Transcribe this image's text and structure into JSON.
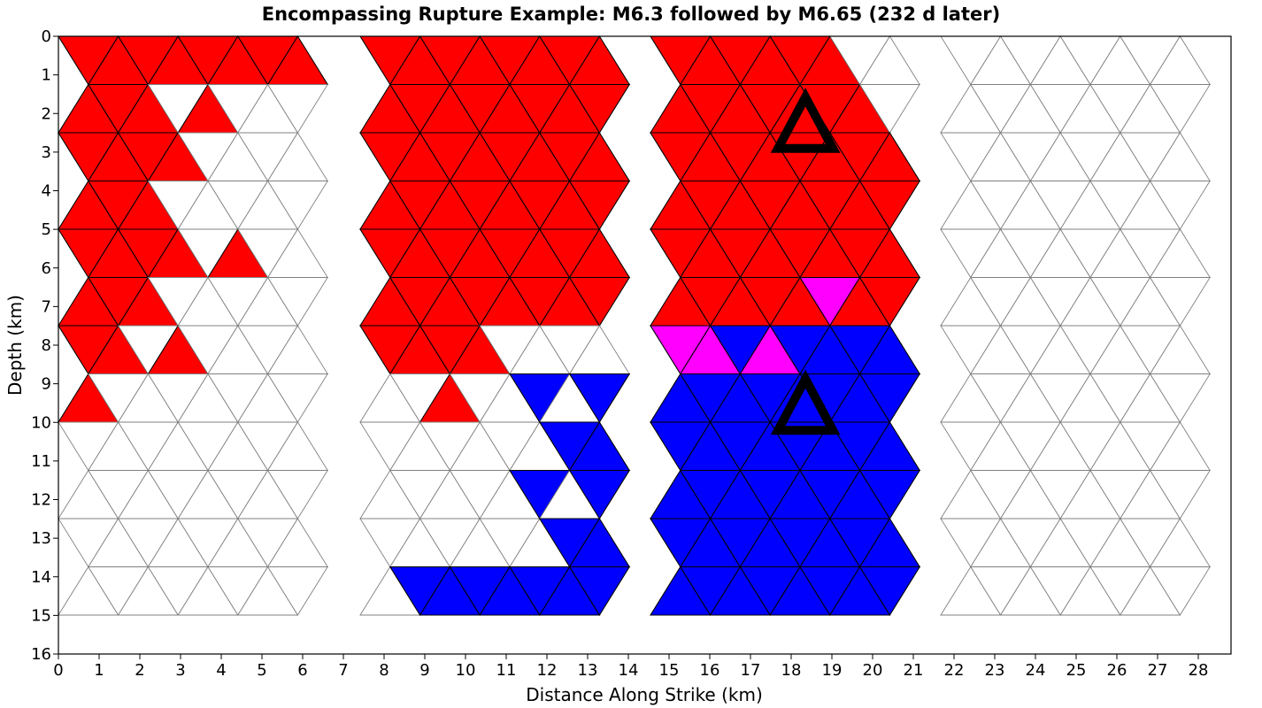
{
  "chart_data": {
    "type": "triangular fault mesh (rupture map)",
    "title": "Encompassing Rupture Example: M6.3 followed by M6.65 (232 d later)",
    "xlabel": "Distance Along Strike (km)",
    "ylabel": "Depth (km)",
    "xlim": [
      0,
      28.8
    ],
    "ylim": [
      16,
      0
    ],
    "x_ticks": [
      "0",
      "1",
      "2",
      "3",
      "4",
      "5",
      "6",
      "7",
      "8",
      "9",
      "10",
      "11",
      "12",
      "13",
      "14",
      "15",
      "16",
      "17",
      "18",
      "19",
      "20",
      "21",
      "22",
      "23",
      "24",
      "25",
      "26",
      "27",
      "28"
    ],
    "y_ticks": [
      "0",
      "1",
      "2",
      "3",
      "4",
      "5",
      "6",
      "7",
      "8",
      "9",
      "10",
      "11",
      "12",
      "13",
      "14",
      "15",
      "16"
    ],
    "colors": {
      "first_rupture": "#ff0000",
      "second_rupture": "#0000ff",
      "overlap": "#ff00ff",
      "unruptured": "#ffffff",
      "ruptured_edge": "#000000",
      "mesh_edge": "#808080"
    },
    "hypocenter_markers": [
      {
        "x_km": 18.35,
        "depth_km": 2.4
      },
      {
        "x_km": 18.35,
        "depth_km": 9.7
      }
    ],
    "segments": [
      {
        "x_range_km": [
          0,
          7.4
        ],
        "mesh_right_edge": "zigzag"
      },
      {
        "x_range_km": [
          7.4,
          14.5
        ],
        "mesh_right_edge": "zigzag",
        "first_rupture_right_edge": "zigzag"
      },
      {
        "x_range_km": [
          14.5,
          21.6
        ],
        "mesh_left_edge": "zigzag"
      },
      {
        "x_range_km": [
          21.6,
          28.8
        ]
      }
    ],
    "row_depths_km": [
      0,
      1.18,
      2.36,
      3.54,
      4.72,
      5.9,
      7.08,
      8.26,
      9.44,
      10.62,
      11.8,
      12.98,
      14.16,
      15.34
    ],
    "red_triangles": [
      [
        0,
        0
      ],
      [
        0,
        1
      ],
      [
        0,
        2
      ],
      [
        0,
        3
      ],
      [
        0,
        4
      ],
      [
        0,
        5
      ],
      [
        0,
        6
      ],
      [
        0,
        7
      ],
      [
        0,
        8
      ],
      [
        0,
        12
      ],
      [
        0,
        13
      ],
      [
        0,
        14
      ],
      [
        0,
        15
      ],
      [
        0,
        16
      ],
      [
        0,
        17
      ],
      [
        0,
        18
      ],
      [
        0,
        19
      ],
      [
        0,
        20
      ],
      [
        0,
        21
      ],
      [
        0,
        22
      ],
      [
        0,
        24
      ],
      [
        0,
        25
      ],
      [
        0,
        26
      ],
      [
        0,
        27
      ],
      [
        0,
        28
      ],
      [
        0,
        29
      ],
      [
        0,
        30
      ],
      [
        0,
        32
      ],
      [
        0,
        33
      ],
      [
        0,
        34
      ],
      [
        0,
        35
      ],
      [
        0,
        36
      ],
      [
        0,
        37
      ],
      [
        0,
        38
      ],
      [
        0,
        39
      ],
      [
        0,
        40
      ],
      [
        0,
        41
      ],
      [
        0,
        42
      ],
      [
        0,
        43
      ],
      [
        0,
        44
      ],
      [
        0,
        45
      ],
      [
        0,
        46
      ],
      [
        0,
        47
      ],
      [
        0,
        48
      ],
      [
        0,
        49
      ],
      [
        0,
        50
      ],
      [
        0,
        51
      ],
      [
        0,
        52
      ],
      [
        0,
        53
      ],
      [
        0,
        54
      ],
      [
        0,
        55
      ],
      [
        0,
        56
      ],
      [
        0,
        57
      ],
      [
        0,
        58
      ],
      [
        0,
        59
      ],
      [
        0,
        60
      ],
      [
        0,
        61
      ],
      [
        0,
        62
      ],
      [
        0,
        63
      ],
      [
        0,
        64
      ],
      [
        0,
        65
      ],
      [
        0,
        66
      ],
      [
        0,
        67
      ],
      [
        0,
        68
      ],
      [
        0,
        69
      ],
      [
        0,
        70
      ],
      [
        0,
        71
      ],
      [
        0,
        72
      ],
      [
        0,
        73
      ],
      [
        0,
        74
      ],
      [
        0,
        75
      ],
      [
        0,
        76
      ],
      [
        0,
        77
      ],
      [
        0,
        78
      ],
      [
        0,
        79
      ],
      [
        0,
        80
      ],
      [
        0,
        81
      ],
      [
        0,
        82
      ],
      [
        0,
        83
      ],
      [
        0,
        84
      ],
      [
        0,
        85
      ],
      [
        0,
        86
      ],
      [
        0,
        87
      ],
      [
        0,
        88
      ],
      [
        0,
        89
      ],
      [
        0,
        90
      ],
      [
        0,
        91
      ],
      [
        0,
        92
      ],
      [
        0,
        93
      ],
      [
        0,
        94
      ],
      [
        0,
        95
      ],
      [
        0,
        96
      ],
      [
        0,
        97
      ],
      [
        0,
        98
      ],
      [
        0,
        99
      ],
      [
        0,
        100
      ],
      [
        0,
        101
      ],
      [
        0,
        102
      ],
      [
        0,
        103
      ],
      [
        0,
        104
      ],
      [
        0,
        105
      ],
      [
        0,
        106
      ],
      [
        0,
        107
      ],
      [
        0,
        108
      ],
      [
        0,
        109
      ],
      [
        0,
        110
      ],
      [
        0,
        111
      ],
      [
        0,
        112
      ],
      [
        0,
        113
      ],
      [
        0,
        114
      ],
      [
        0,
        115
      ],
      [
        0,
        116
      ],
      [
        0,
        117
      ],
      [
        0,
        118
      ],
      [
        0,
        119
      ]
    ]
  }
}
